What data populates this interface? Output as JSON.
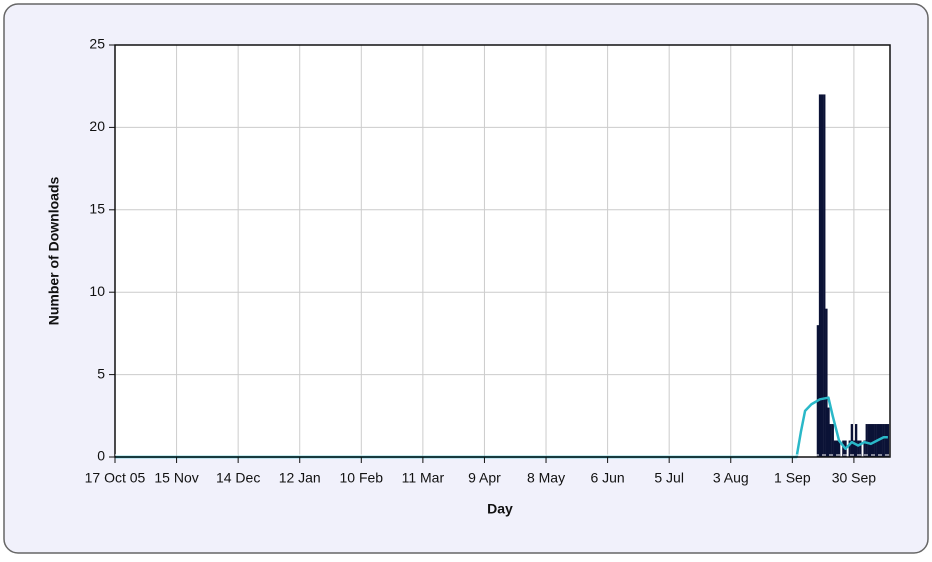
{
  "chart_data": {
    "type": "bar",
    "xlabel": "Day",
    "ylabel": "Number of Downloads",
    "xlim": [
      0,
      365
    ],
    "xticks": [
      {
        "value": 0,
        "label": "17 Oct 05"
      },
      {
        "value": 29,
        "label": "15 Nov"
      },
      {
        "value": 58,
        "label": "14 Dec"
      },
      {
        "value": 87,
        "label": "12 Jan"
      },
      {
        "value": 116,
        "label": "10 Feb"
      },
      {
        "value": 145,
        "label": "11 Mar"
      },
      {
        "value": 174,
        "label": "9 Apr"
      },
      {
        "value": 203,
        "label": "8 May"
      },
      {
        "value": 232,
        "label": "6 Jun"
      },
      {
        "value": 261,
        "label": "5 Jul"
      },
      {
        "value": 290,
        "label": "3 Aug"
      },
      {
        "value": 319,
        "label": "1 Sep"
      },
      {
        "value": 348,
        "label": "30 Sep"
      }
    ],
    "ylim": [
      0,
      25
    ],
    "yticks": [
      0,
      5,
      10,
      15,
      20,
      25
    ],
    "grid": true,
    "series": [
      {
        "type": "bar",
        "color": "#0b1236",
        "x": [
          331,
          332,
          333,
          334,
          335,
          336,
          337,
          338,
          339,
          340,
          341,
          342,
          343,
          344,
          345,
          346,
          347,
          348,
          349,
          350,
          351,
          352,
          353,
          354,
          355,
          356,
          357,
          358,
          359,
          360,
          361,
          362,
          363,
          364
        ],
        "values": [
          8,
          22,
          22,
          22,
          9,
          3,
          2,
          2,
          1,
          1,
          1,
          0,
          1,
          1,
          0,
          1,
          2,
          1,
          2,
          1,
          1,
          0,
          1,
          2,
          2,
          2,
          2,
          2,
          2,
          2,
          2,
          2,
          2,
          2
        ]
      },
      {
        "type": "line",
        "color": "#2ab8c8",
        "x": [
          0,
          321,
          323,
          325,
          328,
          332,
          336,
          338,
          341,
          344,
          347,
          350,
          353,
          356,
          359,
          362,
          364
        ],
        "values": [
          0,
          0,
          1.5,
          2.8,
          3.2,
          3.5,
          3.6,
          2.5,
          1,
          0.5,
          0.9,
          0.7,
          0.9,
          0.8,
          1.0,
          1.2,
          1.2
        ]
      }
    ]
  }
}
